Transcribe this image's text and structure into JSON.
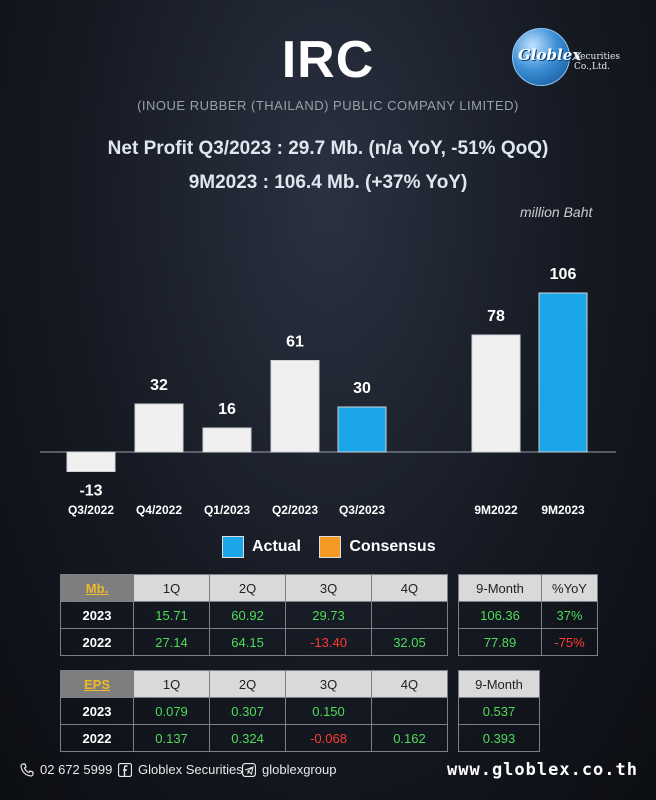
{
  "header": {
    "title": "IRC",
    "subtitle": "(INOUE RUBBER (THAILAND) PUBLIC COMPANY LIMITED)",
    "headline1": "Net Profit  Q3/2023 : 29.7 Mb. (n/a YoY, -51% QoQ)",
    "headline2": "9M2023 : 106.4 Mb. (+37% YoY)",
    "unit": "million Baht"
  },
  "logo": {
    "name": "Globlex",
    "sub": "Securities Co.,Ltd."
  },
  "colors": {
    "actual": "#1aa6e8",
    "consensus": "#f59a23",
    "bar": "#f0f0f0",
    "positive": "#4fdc57",
    "negative": "#ff3b30"
  },
  "chart_data": {
    "type": "bar",
    "categories": [
      "Q3/2022",
      "Q4/2022",
      "Q1/2023",
      "Q2/2023",
      "Q3/2023",
      "9M2022",
      "9M2023"
    ],
    "values": [
      -13,
      32,
      16,
      61,
      30,
      78,
      106
    ],
    "highlight": [
      "Q3/2023",
      "9M2023"
    ],
    "legend": [
      "Actual",
      "Consensus"
    ],
    "legend_placement": "bottom"
  },
  "legend": {
    "actual": "Actual",
    "consensus": "Consensus"
  },
  "np_table": {
    "corner": "Mb.",
    "headers": [
      "1Q",
      "2Q",
      "3Q",
      "4Q"
    ],
    "rows": [
      {
        "label": "2023",
        "values": [
          "15.71",
          "60.92",
          "29.73",
          ""
        ]
      },
      {
        "label": "2022",
        "values": [
          "27.14",
          "64.15",
          "-13.40",
          "32.05"
        ]
      }
    ]
  },
  "np_9m": {
    "headers": [
      "9-Month",
      "%YoY"
    ],
    "rows": [
      {
        "values": [
          "106.36",
          "37%"
        ]
      },
      {
        "values": [
          "77.89",
          "-75%"
        ]
      }
    ]
  },
  "eps_table": {
    "corner": "EPS",
    "headers": [
      "1Q",
      "2Q",
      "3Q",
      "4Q"
    ],
    "rows": [
      {
        "label": "2023",
        "values": [
          "0.079",
          "0.307",
          "0.150",
          ""
        ]
      },
      {
        "label": "2022",
        "values": [
          "0.137",
          "0.324",
          "-0.068",
          "0.162"
        ]
      }
    ]
  },
  "eps_9m": {
    "headers": [
      "9-Month"
    ],
    "rows": [
      {
        "values": [
          "0.537"
        ]
      },
      {
        "values": [
          "0.393"
        ]
      }
    ]
  },
  "footer": {
    "phone": "02 672 5999",
    "facebook": "Globlex Securities",
    "telegram": "globlexgroup",
    "website": "www.globlex.co.th",
    "icons": [
      "phone-icon",
      "facebook-icon",
      "telegram-icon"
    ]
  }
}
